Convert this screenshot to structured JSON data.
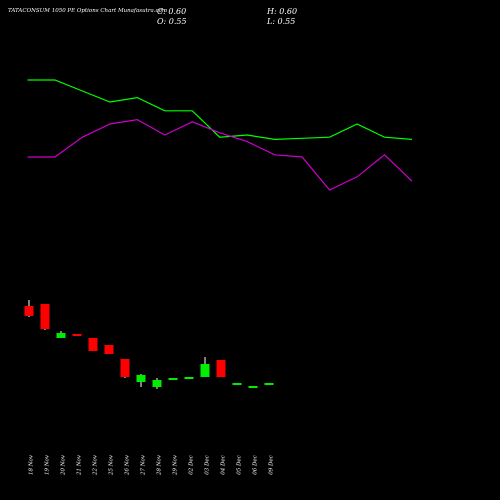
{
  "header": {
    "title": "TATACONSUM 1050 PE Options Chart Munafasutra.com",
    "close": "C: 0.60",
    "open": "O: 0.55",
    "high": "H: 0.60",
    "low": "L: 0.55"
  },
  "colors": {
    "background": "#000000",
    "up": "#00ee00",
    "down": "#ff0000",
    "wick": "#ffffff",
    "line_green": "#00ff00",
    "line_magenta": "#cc00cc",
    "text": "#ffffff"
  },
  "chart_data": {
    "type": "candlestick",
    "title": "",
    "xlabel": "",
    "ylabel": "",
    "grid": false,
    "legend": "none",
    "categories": [
      "18 Nov",
      "19 Nov",
      "20 Nov",
      "21 Nov",
      "22 Nov",
      "25 Nov",
      "26 Nov",
      "27 Nov",
      "28 Nov",
      "29 Nov",
      "02 Dec",
      "03 Dec",
      "04 Dec",
      "05 Dec",
      "06 Dec",
      "09 Dec"
    ],
    "ohlc": [
      {
        "o": 26.0,
        "h": 29.0,
        "l": 20.5,
        "c": 21.0
      },
      {
        "o": 27.0,
        "h": 27.0,
        "l": 14.0,
        "c": 14.5
      },
      {
        "o": 10.0,
        "h": 13.5,
        "l": 10.0,
        "c": 12.5
      },
      {
        "o": 12.0,
        "h": 12.0,
        "l": 11.0,
        "c": 11.0
      },
      {
        "o": 10.0,
        "h": 10.0,
        "l": 3.5,
        "c": 3.5
      },
      {
        "o": 6.5,
        "h": 6.5,
        "l": 2.0,
        "c": 2.0
      },
      {
        "o": -0.5,
        "h": -0.5,
        "l": -10.0,
        "c": -9.5
      },
      {
        "o": -12.0,
        "h": -8.0,
        "l": -14.5,
        "c": -8.5
      },
      {
        "o": -14.5,
        "h": -10.0,
        "l": -15.5,
        "c": -11.0
      },
      {
        "o": -10.0,
        "h": -10.0,
        "l": -10.0,
        "c": -10.0
      },
      {
        "o": -10.0,
        "h": -9.5,
        "l": -10.5,
        "c": -9.5
      },
      {
        "o": -9.5,
        "h": 0.5,
        "l": -9.5,
        "c": -3.0
      },
      {
        "o": -1.0,
        "h": -1.0,
        "l": -9.5,
        "c": -9.5
      },
      {
        "o": -13.0,
        "h": -12.5,
        "l": -13.5,
        "c": -12.5
      },
      {
        "o": -14.5,
        "h": -14.0,
        "l": -14.5,
        "c": -14.0
      },
      {
        "o": -13.0,
        "h": -12.5,
        "l": -13.5,
        "c": -12.5
      }
    ],
    "line_series": [
      {
        "color": "#00ff00",
        "values": [
          null,
          0.0,
          0.0,
          5.0,
          10.0,
          8.0,
          14.0,
          14.0,
          26.0,
          25.0,
          27.0,
          26.5,
          26.0,
          20.0,
          26.0,
          27.0
        ]
      },
      {
        "color": "#cc00cc",
        "values": [
          null,
          35.0,
          35.0,
          26.0,
          20.0,
          18.0,
          25.0,
          19.0,
          24.0,
          28.0,
          34.0,
          35.0,
          50.0,
          44.0,
          34.0,
          46.0
        ]
      }
    ]
  }
}
